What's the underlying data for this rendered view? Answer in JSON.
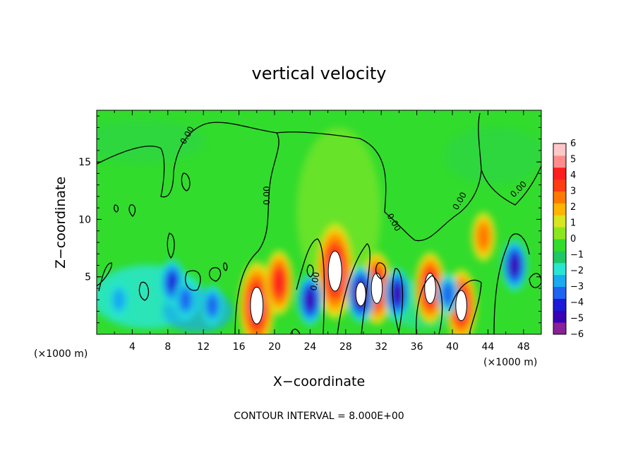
{
  "chart_data": {
    "type": "heatmap",
    "title": "vertical velocity",
    "xlabel": "X−coordinate",
    "ylabel": "Z−coordinate",
    "x_unit_label": "(×1000 m)",
    "xlim": [
      0,
      50
    ],
    "ylim": [
      0,
      19.5
    ],
    "x_ticks": [
      4,
      8,
      12,
      16,
      20,
      24,
      28,
      32,
      36,
      40,
      44,
      48
    ],
    "y_ticks": [
      5,
      10,
      15
    ],
    "footer": "CONTOUR INTERVAL = 8.000E+00",
    "zero_contour_label": "0.00",
    "colorbar": {
      "ticks": [
        "6",
        "5",
        "4",
        "3",
        "2",
        "1",
        "0",
        "−1",
        "−2",
        "−3",
        "−4",
        "−5",
        "−6"
      ],
      "colors": [
        "#8a1f9a",
        "#3a00b4",
        "#1a1ad8",
        "#1e64f0",
        "#19aaf0",
        "#28e6d2",
        "#1ec864",
        "#32dc2d",
        "#8ce61e",
        "#d7e61e",
        "#ffb400",
        "#ff7800",
        "#ff3c14",
        "#ff1e1e",
        "#ff8c8c",
        "#ffc8c8"
      ]
    },
    "features": [
      {
        "x": 18,
        "z": 2.5,
        "value": 8,
        "shape": "updraft"
      },
      {
        "x": 20.5,
        "z": 4.5,
        "value": 5,
        "shape": "updraft"
      },
      {
        "x": 26.8,
        "z": 5.5,
        "value": 9,
        "shape": "updraft"
      },
      {
        "x": 31.5,
        "z": 4,
        "value": 6,
        "shape": "updraft"
      },
      {
        "x": 37.5,
        "z": 4,
        "value": 6,
        "shape": "updraft"
      },
      {
        "x": 41,
        "z": 2.5,
        "value": 6,
        "shape": "updraft"
      },
      {
        "x": 43.5,
        "z": 8.5,
        "value": 3,
        "shape": "updraft"
      },
      {
        "x": 8.5,
        "z": 4.5,
        "value": -4,
        "shape": "downdraft"
      },
      {
        "x": 10,
        "z": 3,
        "value": -3,
        "shape": "downdraft"
      },
      {
        "x": 13,
        "z": 2.5,
        "value": -3,
        "shape": "downdraft"
      },
      {
        "x": 24,
        "z": 3,
        "value": -5,
        "shape": "downdraft"
      },
      {
        "x": 29.7,
        "z": 3.5,
        "value": -6,
        "shape": "downdraft"
      },
      {
        "x": 33.8,
        "z": 3.5,
        "value": -5,
        "shape": "downdraft"
      },
      {
        "x": 39.5,
        "z": 3.5,
        "value": -3,
        "shape": "downdraft"
      },
      {
        "x": 47,
        "z": 6,
        "value": -5,
        "shape": "downdraft"
      },
      {
        "x": 2.5,
        "z": 3,
        "value": -2,
        "shape": "downdraft"
      }
    ]
  }
}
